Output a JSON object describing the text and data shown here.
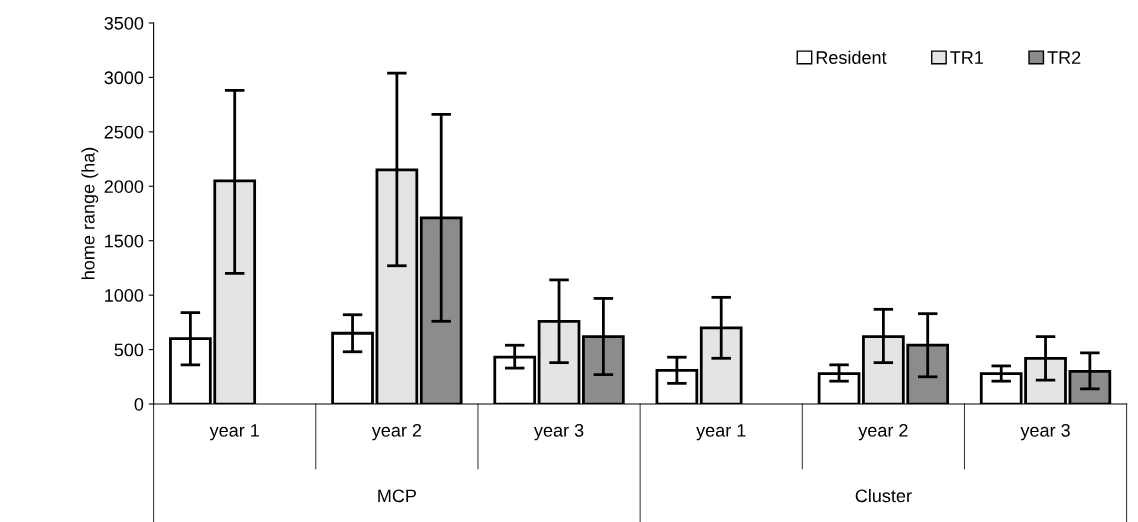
{
  "chart_data": {
    "type": "bar",
    "ylabel": "home range (ha)",
    "categories": [
      "year 1",
      "year 2",
      "year 3",
      "year 1",
      "year 2",
      "year 3"
    ],
    "annotations": [
      "MCP",
      "Cluster"
    ],
    "series": [
      {
        "name": "Resident",
        "color": "#ffffff",
        "values": [
          600,
          650,
          430,
          310,
          280,
          280
        ],
        "errors": [
          [
            360,
            840
          ],
          [
            480,
            820
          ],
          [
            330,
            540
          ],
          [
            190,
            430
          ],
          [
            210,
            360
          ],
          [
            210,
            350
          ]
        ]
      },
      {
        "name": "TR1",
        "color": "#e4e4e4",
        "values": [
          2050,
          2150,
          760,
          700,
          620,
          420
        ],
        "errors": [
          [
            1200,
            2880
          ],
          [
            1270,
            3040
          ],
          [
            380,
            1140
          ],
          [
            420,
            980
          ],
          [
            380,
            870
          ],
          [
            220,
            620
          ]
        ]
      },
      {
        "name": "TR2",
        "color": "#8c8c8c",
        "values": [
          null,
          1710,
          620,
          null,
          540,
          300
        ],
        "errors": [
          null,
          [
            760,
            2660
          ],
          [
            270,
            970
          ],
          null,
          [
            250,
            830
          ],
          [
            140,
            470
          ]
        ]
      }
    ],
    "ylim": [
      0,
      3500
    ],
    "yticks": [
      0,
      500,
      1000,
      1500,
      2000,
      2500,
      3000,
      3500
    ],
    "legend": "top right",
    "grid": false
  }
}
